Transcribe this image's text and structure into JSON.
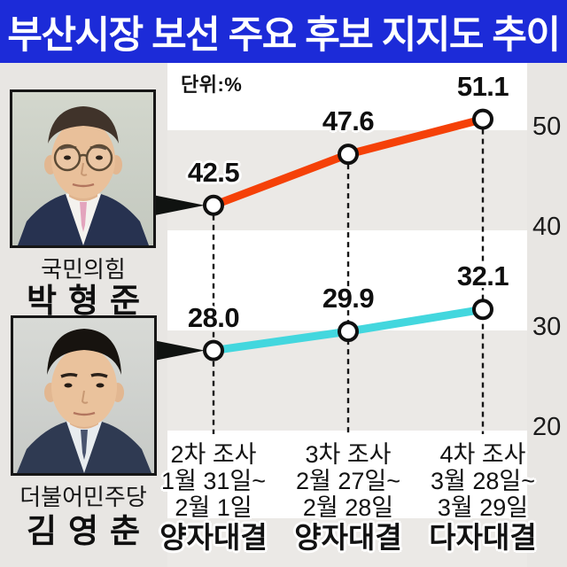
{
  "title": "부산시장 보선 주요 후보 지지도 추이",
  "unit_label": "단위:%",
  "candidates": [
    {
      "party": "국민의힘",
      "name": "박형준"
    },
    {
      "party": "더불어민주당",
      "name": "김영춘"
    }
  ],
  "chart_data": {
    "type": "line",
    "title": "부산시장 보선 주요 후보 지지도 추이",
    "unit": "%",
    "categories": [
      {
        "survey": "2차 조사",
        "dates": [
          "1월 31일~",
          "2월 1일"
        ],
        "format": "양자대결"
      },
      {
        "survey": "3차 조사",
        "dates": [
          "2월 27일~",
          "2월 28일"
        ],
        "format": "양자대결"
      },
      {
        "survey": "4차 조사",
        "dates": [
          "3월 28일~",
          "3월 29일"
        ],
        "format": "다자대결"
      }
    ],
    "series": [
      {
        "name": "박형준",
        "party": "국민의힘",
        "color": "#f54108",
        "values": [
          42.5,
          47.6,
          51.1
        ],
        "labels": [
          "42.5",
          "47.6",
          "51.1"
        ]
      },
      {
        "name": "김영춘",
        "party": "더불어민주당",
        "color": "#43d7de",
        "values": [
          28.0,
          29.9,
          32.1
        ],
        "labels": [
          "28.0",
          "29.9",
          "32.1"
        ]
      }
    ],
    "yticks": [
      50,
      40,
      30,
      20
    ],
    "ylim_note": "right-side axis labels, banded background every 10 units",
    "legend_position": "candidate photos on left, linked by black pointer arrows",
    "grid": "alternating horizontal bands"
  },
  "colors": {
    "title_bg": "#1c2bd8",
    "title_text": "#ffffff",
    "series_park": "#f54108",
    "series_kim": "#43d7de",
    "band_gray": "#ebe9e6",
    "band_white": "#ffffff",
    "marker_fill": "#ffffff",
    "marker_stroke": "#101010"
  }
}
